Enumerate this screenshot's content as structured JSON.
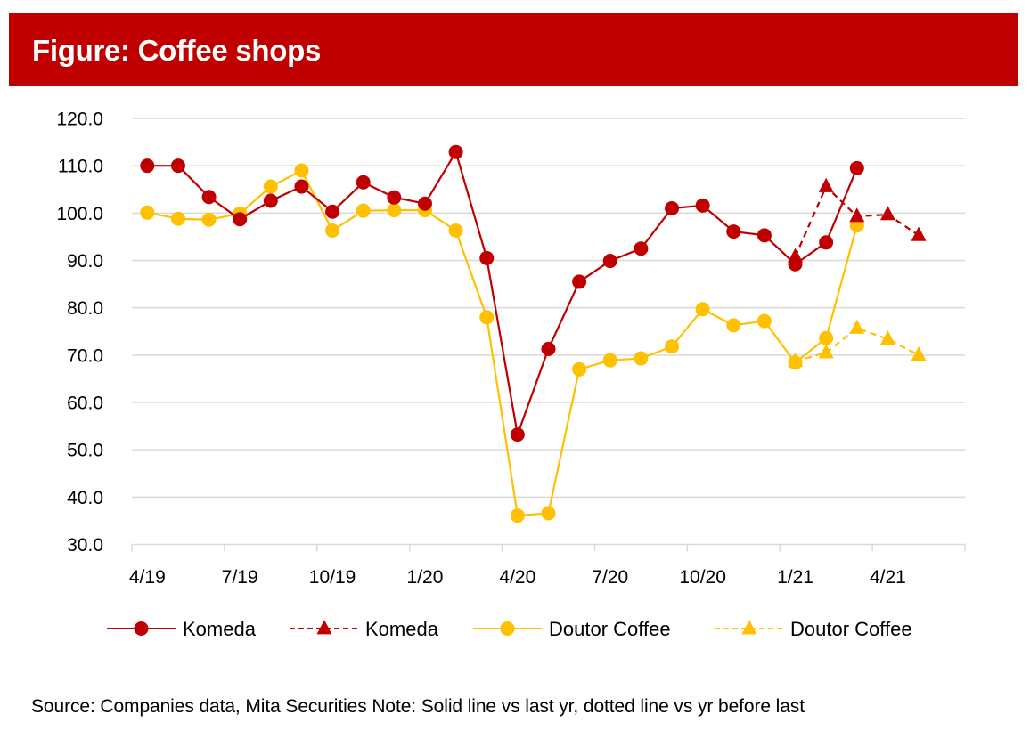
{
  "header": {
    "title": "Figure: Coffee shops"
  },
  "colors": {
    "komeda": "#C00000",
    "doutor": "#FFC000",
    "grid": "#D9D9D9",
    "header_bg": "#C00000"
  },
  "chart_data": {
    "type": "line",
    "title": "Figure: Coffee shops",
    "xlabel": "",
    "ylabel": "",
    "ylim": [
      30,
      120
    ],
    "y_ticks": [
      "120.0",
      "110.0",
      "100.0",
      "90.0",
      "80.0",
      "70.0",
      "60.0",
      "50.0",
      "40.0",
      "30.0"
    ],
    "y_tick_values": [
      120,
      110,
      100,
      90,
      80,
      70,
      60,
      50,
      40,
      30
    ],
    "grid": true,
    "legend_position": "bottom",
    "categories": [
      "4/19",
      "5/19",
      "6/19",
      "7/19",
      "8/19",
      "9/19",
      "10/19",
      "11/19",
      "12/19",
      "1/20",
      "2/20",
      "3/20",
      "4/20",
      "5/20",
      "6/20",
      "7/20",
      "8/20",
      "9/20",
      "10/20",
      "11/20",
      "12/20",
      "1/21",
      "2/21",
      "3/21",
      "4/21",
      "5/21",
      "6/21"
    ],
    "x_tick_labels": [
      {
        "index": 0,
        "label": "4/19"
      },
      {
        "index": 3,
        "label": "7/19"
      },
      {
        "index": 6,
        "label": "10/19"
      },
      {
        "index": 9,
        "label": "1/20"
      },
      {
        "index": 12,
        "label": "4/20"
      },
      {
        "index": 15,
        "label": "7/20"
      },
      {
        "index": 18,
        "label": "10/20"
      },
      {
        "index": 21,
        "label": "1/21"
      },
      {
        "index": 24,
        "label": "4/21"
      }
    ],
    "series": [
      {
        "name": "Komeda",
        "key": "komeda_solid",
        "color": "#C00000",
        "dashed": false,
        "marker": "circle",
        "start_index": 0,
        "values": [
          110.0,
          110.0,
          103.4,
          98.7,
          102.6,
          105.6,
          100.3,
          106.5,
          103.3,
          102.0,
          112.9,
          90.5,
          53.2,
          71.3,
          85.5,
          89.9,
          92.5,
          101.0,
          101.6,
          96.1,
          95.3,
          89.2,
          93.8,
          109.5
        ]
      },
      {
        "name": "Komeda",
        "key": "komeda_dashed",
        "color": "#C00000",
        "dashed": true,
        "marker": "triangle",
        "start_index": 21,
        "values": [
          90.8,
          105.6,
          99.3,
          99.7,
          95.3
        ]
      },
      {
        "name": "Doutor Coffee",
        "key": "doutor_solid",
        "color": "#FFC000",
        "dashed": false,
        "marker": "circle",
        "start_index": 0,
        "values": [
          100.1,
          98.8,
          98.6,
          99.9,
          105.6,
          109.0,
          96.3,
          100.5,
          100.6,
          100.6,
          96.3,
          78.0,
          36.1,
          36.6,
          67.0,
          68.9,
          69.3,
          71.8,
          79.7,
          76.3,
          77.2,
          68.4,
          73.6,
          97.4
        ]
      },
      {
        "name": "Doutor Coffee",
        "key": "doutor_dashed",
        "color": "#FFC000",
        "dashed": true,
        "marker": "triangle",
        "start_index": 21,
        "values": [
          68.7,
          70.5,
          75.7,
          73.4,
          70.0
        ]
      }
    ],
    "legend": [
      {
        "label": "Komeda",
        "series": "komeda_solid"
      },
      {
        "label": "Komeda",
        "series": "komeda_dashed"
      },
      {
        "label": "Doutor Coffee",
        "series": "doutor_solid"
      },
      {
        "label": "Doutor Coffee",
        "series": "doutor_dashed"
      }
    ]
  },
  "footer": {
    "note": "Source: Companies data, Mita Securities Note: Solid line vs last yr, dotted line vs yr before last"
  }
}
